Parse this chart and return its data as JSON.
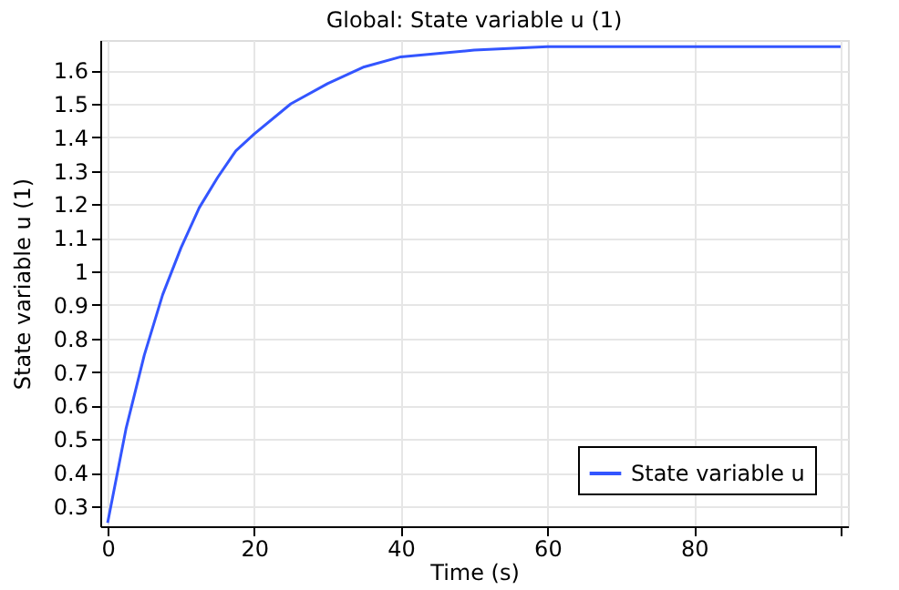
{
  "chart_data": {
    "type": "line",
    "title": "Global: State variable u (1)",
    "xlabel": "Time (s)",
    "ylabel": "State variable u (1)",
    "x": [
      0,
      2.5,
      5,
      7.5,
      10,
      12.5,
      15,
      17.5,
      20,
      25,
      30,
      35,
      40,
      50,
      60,
      70,
      80,
      90,
      100
    ],
    "series": [
      {
        "name": "State variable u",
        "color": "#3355ff",
        "values": [
          0.25,
          0.53,
          0.75,
          0.93,
          1.07,
          1.19,
          1.28,
          1.36,
          1.41,
          1.5,
          1.56,
          1.61,
          1.64,
          1.66,
          1.67,
          1.67,
          1.67,
          1.67,
          1.67
        ]
      }
    ],
    "xlim": [
      -1,
      101
    ],
    "xticks": [
      0,
      20,
      40,
      60,
      80,
      {
        "value": 100,
        "label": null
      }
    ],
    "ylim": [
      0.24,
      1.69
    ],
    "yticks": [
      0.3,
      0.4,
      0.5,
      0.6,
      0.7,
      0.8,
      0.9,
      1,
      1.1,
      1.2,
      1.3,
      1.4,
      1.5,
      1.6
    ],
    "grid": true,
    "legend": "bottom right",
    "marker": "none",
    "line_style": "solid"
  }
}
